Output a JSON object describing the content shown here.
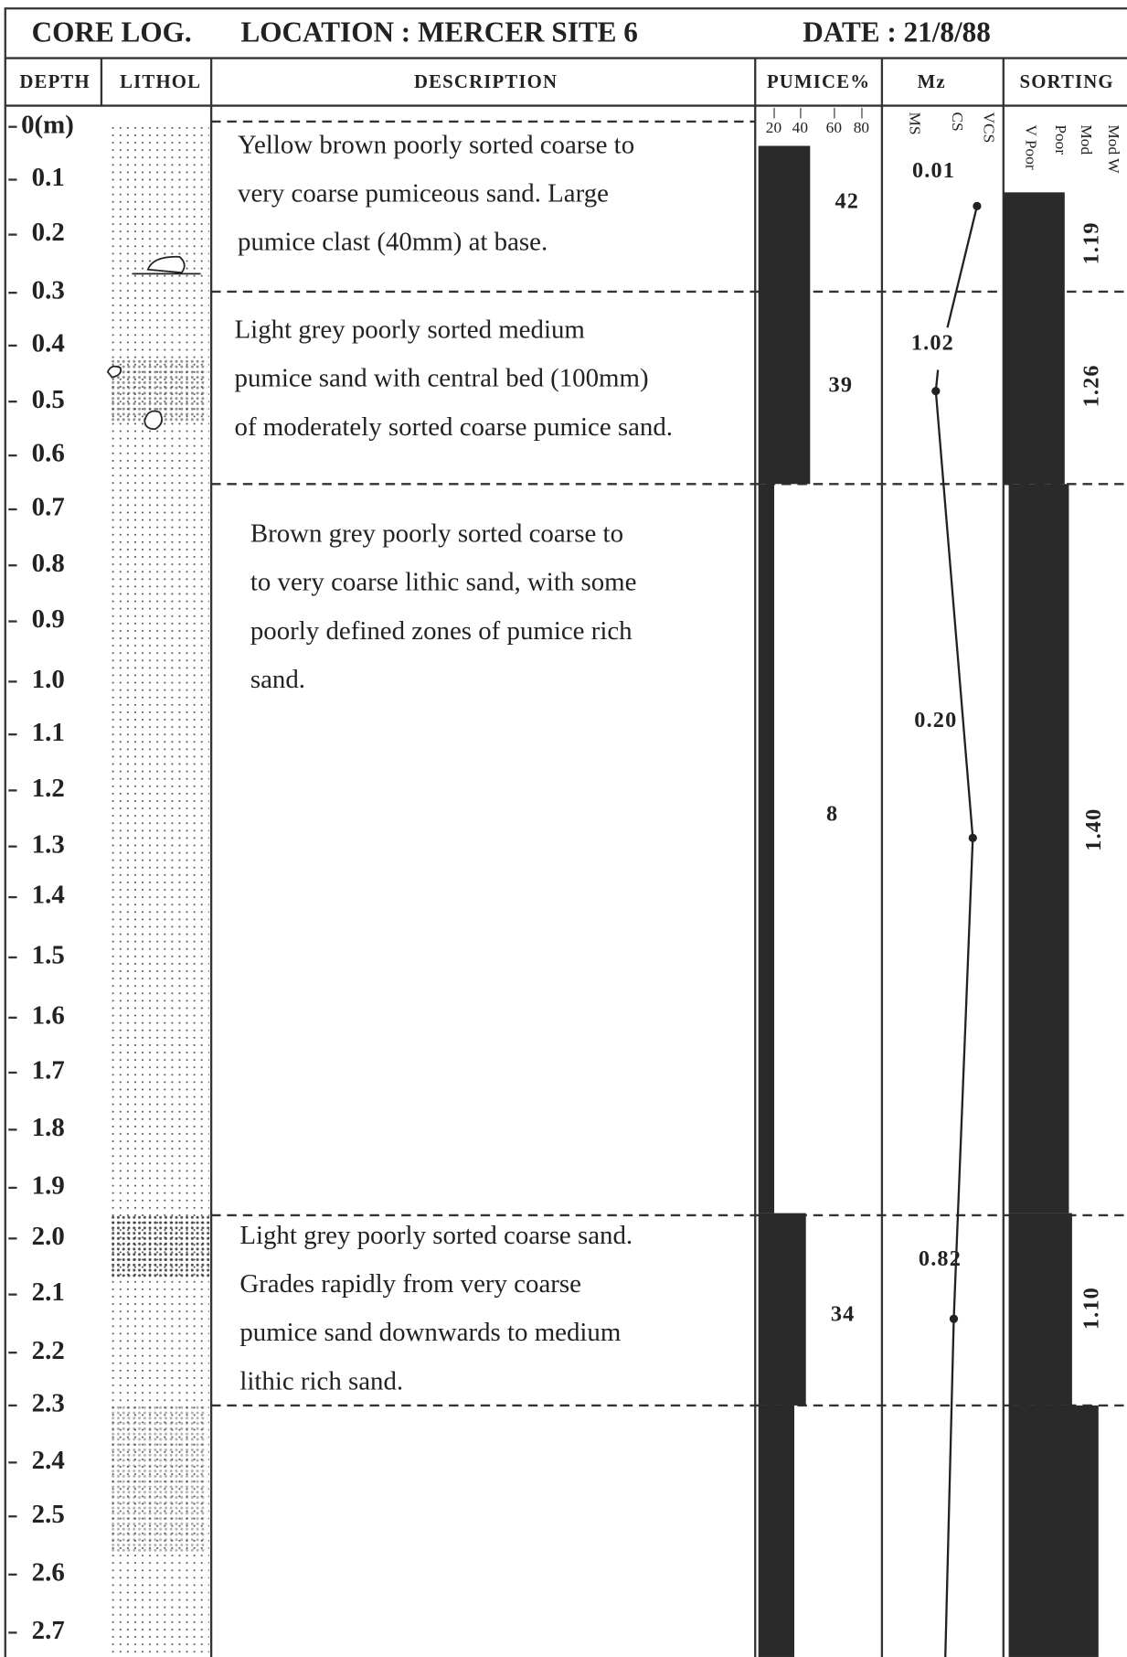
{
  "header": {
    "title": "CORE LOG.",
    "location": "LOCATION : MERCER SITE 6",
    "date": "DATE : 21/8/88"
  },
  "columns": [
    "DEPTH",
    "LITHOL",
    "DESCRIPTION",
    "PUMICE%",
    "Mz",
    "SORTING"
  ],
  "depth_labels": [
    "0(m)",
    "0.1",
    "0.2",
    "0.3",
    "0.4",
    "0.5",
    "0.6",
    "0.7",
    "0.8",
    "0.9",
    "1.0",
    "1.1",
    "1.2",
    "1.3",
    "1.4",
    "1.5",
    "1.6",
    "1.7",
    "1.8",
    "1.9",
    "2.0",
    "2.1",
    "2.2",
    "2.3",
    "2.4",
    "2.5",
    "2.6",
    "2.7"
  ],
  "pumice_scale": [
    "20",
    "40",
    "60",
    "80"
  ],
  "mz_scale": [
    "MS",
    "CS",
    "VCS"
  ],
  "sorting_scale": [
    "V Poor",
    "Poor",
    "Mod",
    "Mod W"
  ],
  "units": [
    {
      "description": [
        "Yellow brown poorly sorted coarse to",
        "very coarse pumiceous sand. Large",
        "pumice clast (40mm) at base."
      ],
      "pumice": "42",
      "mz": "0.01",
      "sorting": "1.19"
    },
    {
      "description": [
        "Light grey poorly sorted medium",
        "pumice sand with central bed (100mm)",
        "of moderately sorted coarse pumice sand."
      ],
      "pumice": "39",
      "mz": "1.02",
      "sorting": "1.26"
    },
    {
      "description": [
        "Brown grey poorly sorted coarse to",
        "to very coarse lithic sand,   with  some",
        "poorly defined zones of pumice rich",
        "sand."
      ],
      "pumice": "8",
      "mz": "0.20",
      "sorting": "1.40"
    },
    {
      "description": [
        "Light grey poorly sorted coarse sand.",
        "Grades rapidly from very coarse",
        "pumice sand downwards to medium",
        "lithic rich sand."
      ],
      "pumice": "34",
      "mz": "0.82",
      "sorting": "1.10"
    }
  ]
}
